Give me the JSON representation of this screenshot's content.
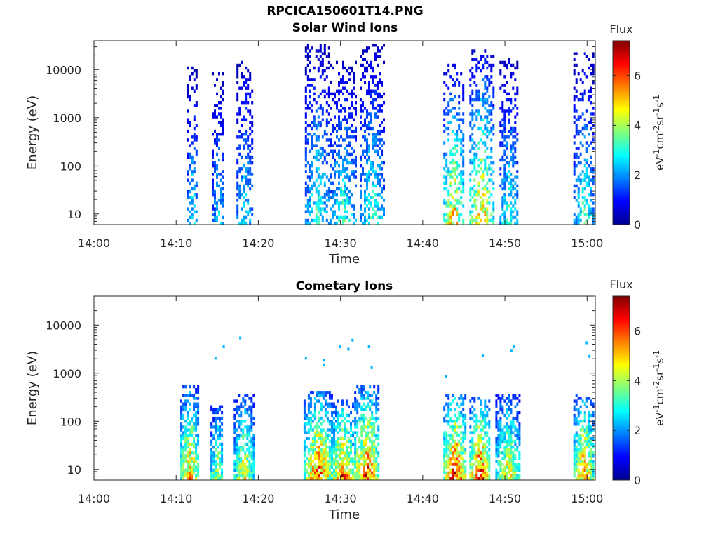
{
  "figure": {
    "title": "RPCICA150601T14.PNG"
  },
  "chart_data": [
    {
      "type": "heatmap",
      "title": "Solar Wind Ions",
      "xlabel": "Time",
      "ylabel": "Energy (eV)",
      "x_ticks": [
        "14:00",
        "14:10",
        "14:20",
        "14:30",
        "14:40",
        "14:50",
        "15:00"
      ],
      "x_range": [
        "14:00",
        "15:01"
      ],
      "y_scale": "log",
      "y_ticks": [
        "10",
        "100",
        "1000",
        "10000"
      ],
      "y_range": [
        6,
        40000
      ],
      "colorbar": {
        "title": "Flux",
        "label": "eV-1cm-2sr-1s-1",
        "ticks": [
          "0",
          "2",
          "4",
          "6"
        ],
        "range": [
          0,
          7.4
        ],
        "colormap": "jet"
      },
      "bursts": [
        {
          "start": "14:11:20",
          "end": "14:12:30",
          "max_energy": 13000,
          "peak_flux": 3.0
        },
        {
          "start": "14:14:20",
          "end": "14:15:50",
          "max_energy": 10000,
          "peak_flux": 2.8
        },
        {
          "start": "14:17:20",
          "end": "14:19:10",
          "max_energy": 22000,
          "peak_flux": 3.0
        },
        {
          "start": "14:25:40",
          "end": "14:28:30",
          "max_energy": 35000,
          "peak_flux": 3.5
        },
        {
          "start": "14:28:40",
          "end": "14:31:50",
          "max_energy": 16000,
          "peak_flux": 3.5
        },
        {
          "start": "14:32:20",
          "end": "14:35:10",
          "max_energy": 35000,
          "peak_flux": 3.5
        },
        {
          "start": "14:42:30",
          "end": "14:44:50",
          "max_energy": 14000,
          "peak_flux": 5.5
        },
        {
          "start": "14:45:40",
          "end": "14:48:30",
          "max_energy": 28000,
          "peak_flux": 5.5
        },
        {
          "start": "14:49:20",
          "end": "14:51:30",
          "max_energy": 18000,
          "peak_flux": 3.5
        },
        {
          "start": "14:58:20",
          "end": "15:00:50",
          "max_energy": 25000,
          "peak_flux": 3.5
        }
      ]
    },
    {
      "type": "heatmap",
      "title": "Cometary Ions",
      "xlabel": "Time",
      "ylabel": "Energy (eV)",
      "x_ticks": [
        "14:00",
        "14:10",
        "14:20",
        "14:30",
        "14:40",
        "14:50",
        "15:00"
      ],
      "x_range": [
        "14:00",
        "15:01"
      ],
      "y_scale": "log",
      "y_ticks": [
        "10",
        "100",
        "1000",
        "10000"
      ],
      "y_range": [
        6,
        40000
      ],
      "colorbar": {
        "title": "Flux",
        "label": "eV-1cm-2sr-1s-1",
        "ticks": [
          "0",
          "2",
          "4",
          "6"
        ],
        "range": [
          0,
          7.4
        ],
        "colormap": "jet"
      },
      "bursts": [
        {
          "start": "14:10:30",
          "end": "14:12:40",
          "max_energy": 600,
          "peak_flux": 5.8
        },
        {
          "start": "14:14:10",
          "end": "14:15:40",
          "max_energy": 220,
          "peak_flux": 4.8
        },
        {
          "start": "14:17:00",
          "end": "14:19:20",
          "max_energy": 380,
          "peak_flux": 5.2
        },
        {
          "start": "14:25:30",
          "end": "14:28:50",
          "max_energy": 480,
          "peak_flux": 6.6
        },
        {
          "start": "14:28:50",
          "end": "14:31:30",
          "max_energy": 300,
          "peak_flux": 6.4
        },
        {
          "start": "14:31:40",
          "end": "14:34:30",
          "max_energy": 600,
          "peak_flux": 6.8
        },
        {
          "start": "14:42:30",
          "end": "14:45:10",
          "max_energy": 400,
          "peak_flux": 7.3
        },
        {
          "start": "14:45:40",
          "end": "14:48:00",
          "max_energy": 350,
          "peak_flux": 7.0
        },
        {
          "start": "14:48:50",
          "end": "14:51:40",
          "max_energy": 420,
          "peak_flux": 5.2
        },
        {
          "start": "14:58:20",
          "end": "15:00:40",
          "max_energy": 400,
          "peak_flux": 6.2
        }
      ],
      "sparse_points": [
        {
          "time": "14:14:40",
          "energy": 2200
        },
        {
          "time": "14:15:40",
          "energy": 3800
        },
        {
          "time": "14:17:40",
          "energy": 5800
        },
        {
          "time": "14:25:40",
          "energy": 2200
        },
        {
          "time": "14:27:50",
          "energy": 2000
        },
        {
          "time": "14:27:50",
          "energy": 1600
        },
        {
          "time": "14:29:50",
          "energy": 3800
        },
        {
          "time": "14:30:50",
          "energy": 3400
        },
        {
          "time": "14:31:20",
          "energy": 5200
        },
        {
          "time": "14:33:20",
          "energy": 3800
        },
        {
          "time": "14:33:40",
          "energy": 1400
        },
        {
          "time": "14:42:40",
          "energy": 900
        },
        {
          "time": "14:47:10",
          "energy": 2500
        },
        {
          "time": "14:51:00",
          "energy": 3800
        },
        {
          "time": "14:50:40",
          "energy": 3200
        },
        {
          "time": "14:59:50",
          "energy": 4600
        },
        {
          "time": "15:00:10",
          "energy": 2400
        }
      ]
    }
  ]
}
